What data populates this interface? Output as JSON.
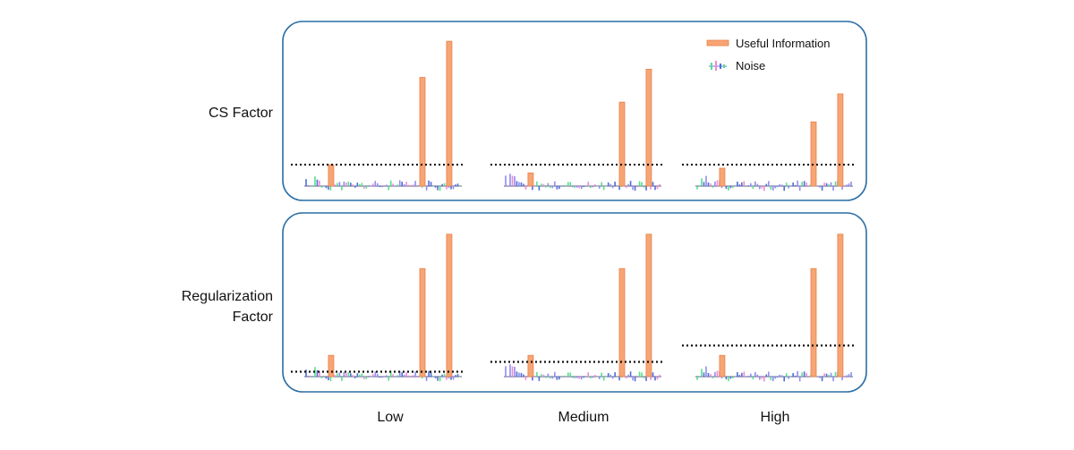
{
  "rows": [
    {
      "label": "CS Factor",
      "threshold_levels": [
        0.13,
        0.13,
        0.13
      ]
    },
    {
      "label": "Regularization Factor",
      "label_lines": [
        "Regularization",
        "Factor"
      ],
      "threshold_levels": [
        0.03,
        0.09,
        0.19
      ]
    }
  ],
  "columns": [
    "Low",
    "Medium",
    "High"
  ],
  "legend": {
    "useful": {
      "label": "Useful Information",
      "color": "#f7a574",
      "stroke": "#e8804a"
    },
    "noise": {
      "label": "Noise",
      "colors": [
        "#8f8df0",
        "#54e08a",
        "#f08ad2",
        "#4f6ed6"
      ]
    }
  },
  "cs_signal_heights": [
    [
      0.13,
      0.66,
      0.88
    ],
    [
      0.08,
      0.51,
      0.71
    ],
    [
      0.0,
      0.39,
      0.56
    ]
  ],
  "reg_signal_heights": [
    0.13,
    0.66,
    0.87
  ],
  "panel_border_color": "#2a6ea6",
  "threshold_color": "#111111"
}
